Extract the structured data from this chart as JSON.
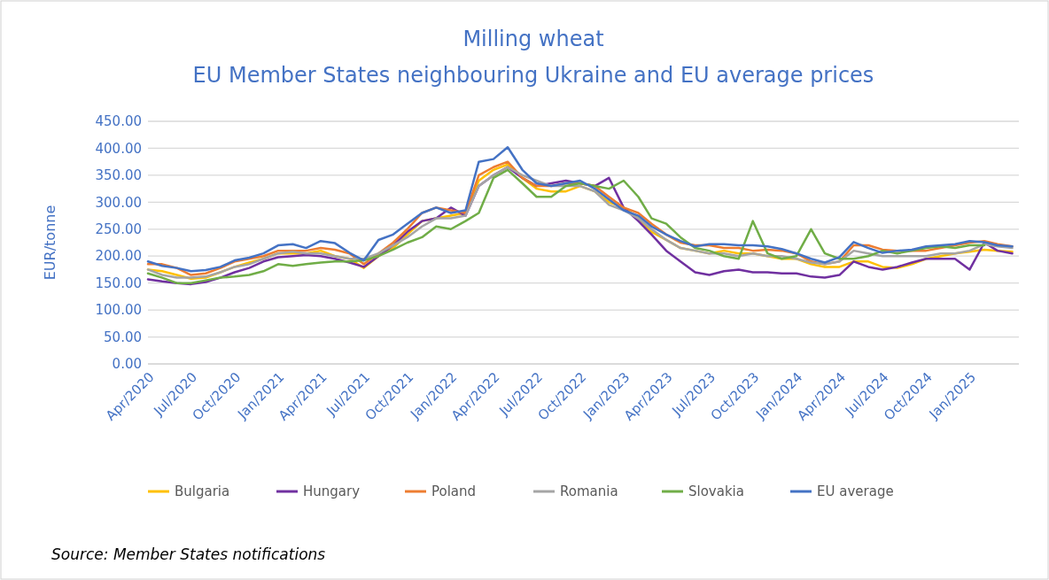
{
  "chart_data": {
    "type": "line",
    "title": "Milling wheat",
    "subtitle": "EU Member States neighbouring Ukraine and EU average prices",
    "ylabel": "EUR/tonne",
    "x": [
      "2020-04",
      "2020-05",
      "2020-06",
      "2020-07",
      "2020-08",
      "2020-09",
      "2020-10",
      "2020-11",
      "2020-12",
      "2021-01",
      "2021-02",
      "2021-03",
      "2021-04",
      "2021-05",
      "2021-06",
      "2021-07",
      "2021-08",
      "2021-09",
      "2021-10",
      "2021-11",
      "2021-12",
      "2022-01",
      "2022-02",
      "2022-03",
      "2022-04",
      "2022-05",
      "2022-06",
      "2022-07",
      "2022-08",
      "2022-09",
      "2022-10",
      "2022-11",
      "2022-12",
      "2023-01",
      "2023-02",
      "2023-03",
      "2023-04",
      "2023-05",
      "2023-06",
      "2023-07",
      "2023-08",
      "2023-09",
      "2023-10",
      "2023-11",
      "2023-12",
      "2024-01",
      "2024-02",
      "2024-03",
      "2024-04",
      "2024-05",
      "2024-06",
      "2024-07",
      "2024-08",
      "2024-09",
      "2024-10",
      "2024-11",
      "2024-12",
      "2025-01",
      "2025-02",
      "2025-03",
      "2025-04"
    ],
    "series": [
      {
        "name": "Bulgaria",
        "color": "#ffc000",
        "values": [
          175,
          172,
          165,
          158,
          160,
          170,
          180,
          188,
          195,
          205,
          205,
          205,
          210,
          200,
          195,
          178,
          200,
          215,
          240,
          265,
          270,
          275,
          280,
          340,
          360,
          370,
          345,
          325,
          320,
          320,
          330,
          320,
          300,
          290,
          270,
          245,
          230,
          215,
          210,
          205,
          210,
          205,
          205,
          200,
          195,
          195,
          185,
          180,
          180,
          190,
          190,
          180,
          178,
          185,
          195,
          200,
          205,
          208,
          212,
          210,
          208
        ]
      },
      {
        "name": "Hungary",
        "color": "#7030a0",
        "values": [
          157,
          153,
          150,
          148,
          152,
          160,
          170,
          178,
          190,
          198,
          200,
          202,
          200,
          195,
          188,
          180,
          200,
          220,
          245,
          265,
          270,
          290,
          275,
          330,
          350,
          365,
          345,
          330,
          335,
          340,
          335,
          330,
          345,
          290,
          265,
          240,
          210,
          190,
          170,
          165,
          172,
          175,
          170,
          170,
          168,
          168,
          162,
          160,
          165,
          190,
          180,
          175,
          180,
          188,
          195,
          195,
          195,
          175,
          225,
          210,
          205
        ]
      },
      {
        "name": "Poland",
        "color": "#ed7d31",
        "values": [
          185,
          185,
          178,
          165,
          168,
          178,
          190,
          195,
          200,
          210,
          210,
          210,
          215,
          212,
          205,
          185,
          205,
          225,
          250,
          280,
          290,
          285,
          280,
          350,
          365,
          375,
          345,
          330,
          330,
          335,
          335,
          330,
          310,
          290,
          280,
          260,
          240,
          225,
          220,
          220,
          215,
          215,
          210,
          212,
          210,
          205,
          190,
          185,
          190,
          220,
          220,
          212,
          210,
          210,
          210,
          215,
          220,
          225,
          228,
          222,
          218
        ]
      },
      {
        "name": "Romania",
        "color": "#a5a5a5",
        "values": [
          175,
          165,
          160,
          160,
          162,
          170,
          180,
          185,
          195,
          205,
          208,
          205,
          205,
          200,
          195,
          195,
          205,
          220,
          235,
          255,
          270,
          270,
          275,
          330,
          350,
          365,
          350,
          340,
          330,
          330,
          330,
          320,
          295,
          285,
          270,
          250,
          230,
          215,
          210,
          205,
          205,
          200,
          205,
          200,
          200,
          195,
          188,
          185,
          190,
          210,
          205,
          200,
          200,
          200,
          200,
          205,
          205,
          210,
          222,
          218,
          215
        ]
      },
      {
        "name": "Slovakia",
        "color": "#70ad47",
        "values": [
          168,
          160,
          150,
          150,
          155,
          160,
          162,
          165,
          172,
          185,
          182,
          185,
          188,
          190,
          190,
          192,
          200,
          212,
          225,
          235,
          255,
          250,
          265,
          280,
          345,
          360,
          335,
          310,
          310,
          330,
          335,
          330,
          325,
          340,
          310,
          270,
          260,
          235,
          215,
          210,
          200,
          195,
          265,
          205,
          195,
          200,
          250,
          205,
          195,
          195,
          200,
          210,
          205,
          210,
          215,
          218,
          215,
          220,
          220,
          null,
          null
        ]
      },
      {
        "name": "EU average",
        "color": "#4472c4",
        "values": [
          190,
          182,
          178,
          172,
          174,
          180,
          192,
          197,
          205,
          220,
          222,
          215,
          228,
          224,
          206,
          192,
          230,
          240,
          260,
          280,
          290,
          280,
          285,
          375,
          380,
          402,
          360,
          335,
          330,
          335,
          340,
          325,
          305,
          285,
          275,
          255,
          240,
          228,
          218,
          222,
          222,
          220,
          220,
          218,
          213,
          205,
          195,
          188,
          198,
          226,
          215,
          206,
          210,
          212,
          218,
          220,
          222,
          228,
          226,
          220,
          218
        ]
      }
    ],
    "xlim": [
      "2020-04-01",
      "2025-04-15"
    ],
    "xticks": [
      {
        "value": "2020-04",
        "label": "Apr/2020"
      },
      {
        "value": "2020-07",
        "label": "Jul/2020"
      },
      {
        "value": "2020-10",
        "label": "Oct/2020"
      },
      {
        "value": "2021-01",
        "label": "Jan/2021"
      },
      {
        "value": "2021-04",
        "label": "Apr/2021"
      },
      {
        "value": "2021-07",
        "label": "Jul/2021"
      },
      {
        "value": "2021-10",
        "label": "Oct/2021"
      },
      {
        "value": "2022-01",
        "label": "Jan/2022"
      },
      {
        "value": "2022-04",
        "label": "Apr/2022"
      },
      {
        "value": "2022-07",
        "label": "Jul/2022"
      },
      {
        "value": "2022-10",
        "label": "Oct/2022"
      },
      {
        "value": "2023-01",
        "label": "Jan/2023"
      },
      {
        "value": "2023-04",
        "label": "Apr/2023"
      },
      {
        "value": "2023-07",
        "label": "Jul/2023"
      },
      {
        "value": "2023-10",
        "label": "Oct/2023"
      },
      {
        "value": "2024-01",
        "label": "Jan/2024"
      },
      {
        "value": "2024-04",
        "label": "Apr/2024"
      },
      {
        "value": "2024-07",
        "label": "Jul/2024"
      },
      {
        "value": "2024-10",
        "label": "Oct/2024"
      },
      {
        "value": "2025-01",
        "label": "Jan/2025"
      }
    ],
    "ylim": [
      0,
      450
    ],
    "yticks": [
      {
        "value": 0,
        "label": "0.00"
      },
      {
        "value": 50,
        "label": "50.00"
      },
      {
        "value": 100,
        "label": "100.00"
      },
      {
        "value": 150,
        "label": "150.00"
      },
      {
        "value": 200,
        "label": "200.00"
      },
      {
        "value": 250,
        "label": "250.00"
      },
      {
        "value": 300,
        "label": "300.00"
      },
      {
        "value": 350,
        "label": "350.00"
      },
      {
        "value": 400,
        "label": "400.00"
      },
      {
        "value": 450,
        "label": "450.00"
      }
    ],
    "grid": "y",
    "legend": "bottom",
    "marker": "none",
    "line_style": "solid",
    "annotations": [
      "Source: Member States notifications"
    ]
  }
}
